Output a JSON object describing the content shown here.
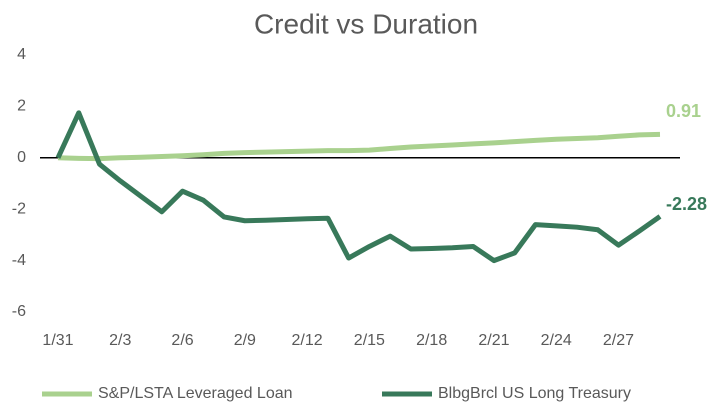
{
  "chart_data": {
    "type": "line",
    "title": "Credit vs Duration",
    "categories": [
      "1/31",
      null,
      null,
      "2/3",
      null,
      null,
      "2/6",
      null,
      null,
      "2/9",
      null,
      null,
      "2/12",
      null,
      null,
      "2/15",
      null,
      null,
      "2/18",
      null,
      null,
      "2/21",
      null,
      null,
      "2/24",
      null,
      null,
      "2/27",
      null,
      null
    ],
    "series": [
      {
        "name": "S&P/LSTA Leveraged Loan",
        "color": "#a9d18e",
        "values": [
          0,
          -0.02,
          -0.03,
          0.0,
          0.02,
          0.05,
          0.08,
          0.12,
          0.17,
          0.2,
          0.22,
          0.24,
          0.26,
          0.28,
          0.28,
          0.3,
          0.36,
          0.42,
          0.46,
          0.5,
          0.54,
          0.58,
          0.63,
          0.68,
          0.72,
          0.75,
          0.78,
          0.84,
          0.89,
          0.91
        ]
      },
      {
        "name": "BlbgBrcl US Long Treasury",
        "color": "#38795a",
        "values": [
          0,
          1.75,
          -0.25,
          -0.9,
          -1.5,
          -2.1,
          -1.3,
          -1.65,
          -2.3,
          -2.45,
          -2.43,
          -2.4,
          -2.37,
          -2.35,
          -3.9,
          -3.45,
          -3.05,
          -3.55,
          -3.53,
          -3.5,
          -3.45,
          -4.0,
          -3.7,
          -2.6,
          -2.65,
          -2.7,
          -2.8,
          -3.4,
          -2.85,
          -2.28
        ]
      }
    ],
    "ylim": [
      -6,
      4
    ],
    "yticks": [
      -6,
      -4,
      -2,
      0,
      2,
      4
    ],
    "grid": false,
    "legend": "bottom"
  }
}
